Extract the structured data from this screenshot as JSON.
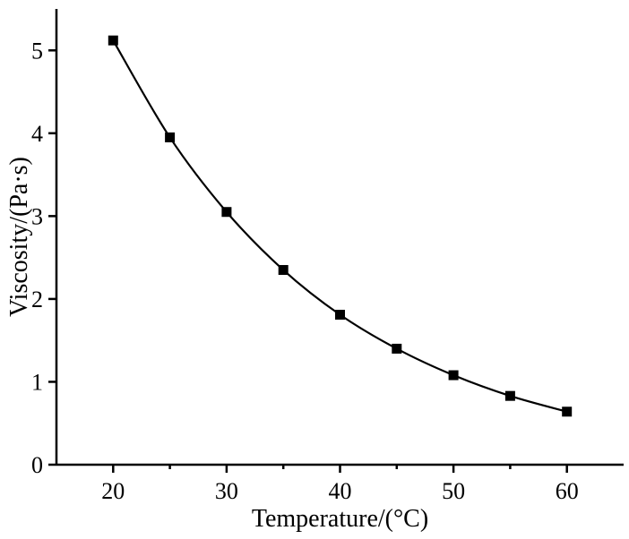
{
  "chart_data": {
    "type": "line",
    "title": "",
    "xlabel": "Temperature/(°C)",
    "ylabel": "Viscosity/(Pa·s)",
    "xlim": [
      15,
      65
    ],
    "ylim": [
      0,
      5.5
    ],
    "x_ticks": [
      20,
      30,
      40,
      50,
      60
    ],
    "x_minor_ticks": [
      25,
      35,
      45,
      55
    ],
    "y_ticks": [
      0,
      1,
      2,
      3,
      4,
      5
    ],
    "grid": false,
    "marker": "square",
    "line_color": "#000000",
    "series": [
      {
        "x": [
          20,
          25,
          30,
          35,
          40,
          45,
          50,
          55,
          60
        ],
        "y": [
          5.12,
          3.95,
          3.05,
          2.35,
          1.81,
          1.4,
          1.08,
          0.83,
          0.64
        ]
      }
    ]
  }
}
